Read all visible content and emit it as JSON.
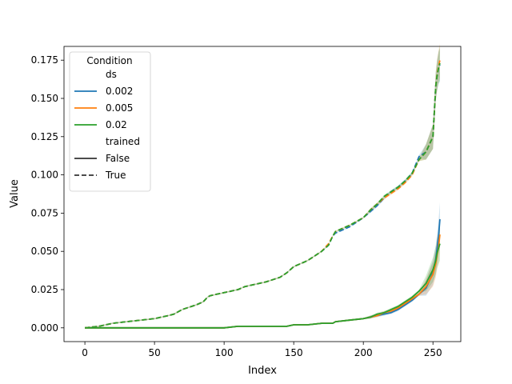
{
  "chart_data": {
    "type": "line",
    "title": "",
    "xlabel": "Index",
    "ylabel": "Value",
    "xlim": [
      -15,
      270
    ],
    "ylim": [
      -0.009,
      0.184
    ],
    "xticks": [
      0,
      50,
      100,
      150,
      200,
      250
    ],
    "xtick_labels": [
      "0",
      "50",
      "100",
      "150",
      "200",
      "250"
    ],
    "yticks": [
      0.0,
      0.025,
      0.05,
      0.075,
      0.1,
      0.125,
      0.15,
      0.175
    ],
    "ytick_labels": [
      "0.000",
      "0.025",
      "0.050",
      "0.075",
      "0.100",
      "0.125",
      "0.150",
      "0.175"
    ],
    "grid": false,
    "legend": {
      "title": "Condition",
      "placement": "top-left",
      "hue_title": "ds",
      "hue_entries": [
        {
          "label": "0.002",
          "color": "#1f77b4"
        },
        {
          "label": "0.005",
          "color": "#ff7f0e"
        },
        {
          "label": "0.02",
          "color": "#2ca02c"
        }
      ],
      "style_title": "trained",
      "style_entries": [
        {
          "label": "False",
          "dash": "solid"
        },
        {
          "label": "True",
          "dash": "dashed"
        }
      ]
    },
    "x": [
      0,
      10,
      20,
      30,
      40,
      50,
      60,
      64,
      70,
      80,
      85,
      88,
      90,
      100,
      110,
      115,
      120,
      130,
      140,
      145,
      150,
      160,
      170,
      175,
      178,
      180,
      190,
      200,
      205,
      210,
      215,
      220,
      225,
      230,
      235,
      240,
      245,
      250,
      252,
      253,
      254,
      255
    ],
    "series": [
      {
        "name": "0.002",
        "trained": "True",
        "color": "#1f77b4",
        "dash": "dashed",
        "values": [
          0.0,
          0.001,
          0.003,
          0.004,
          0.005,
          0.006,
          0.008,
          0.009,
          0.012,
          0.015,
          0.017,
          0.02,
          0.021,
          0.023,
          0.025,
          0.027,
          0.028,
          0.03,
          0.033,
          0.036,
          0.04,
          0.044,
          0.05,
          0.054,
          0.06,
          0.062,
          0.066,
          0.072,
          0.076,
          0.08,
          0.085,
          0.089,
          0.092,
          0.096,
          0.101,
          0.112,
          0.115,
          0.125,
          0.158,
          0.165,
          0.17,
          0.172
        ]
      },
      {
        "name": "0.005",
        "trained": "True",
        "color": "#ff7f0e",
        "dash": "dashed",
        "values": [
          0.0,
          0.001,
          0.003,
          0.004,
          0.005,
          0.006,
          0.008,
          0.009,
          0.012,
          0.015,
          0.017,
          0.02,
          0.021,
          0.023,
          0.025,
          0.027,
          0.028,
          0.03,
          0.033,
          0.036,
          0.04,
          0.044,
          0.05,
          0.055,
          0.06,
          0.063,
          0.067,
          0.072,
          0.077,
          0.081,
          0.085,
          0.088,
          0.091,
          0.095,
          0.1,
          0.11,
          0.115,
          0.125,
          0.158,
          0.166,
          0.171,
          0.175
        ]
      },
      {
        "name": "0.02",
        "trained": "True",
        "color": "#2ca02c",
        "dash": "dashed",
        "values": [
          0.0,
          0.001,
          0.003,
          0.004,
          0.005,
          0.006,
          0.008,
          0.009,
          0.012,
          0.015,
          0.017,
          0.02,
          0.021,
          0.023,
          0.025,
          0.027,
          0.028,
          0.03,
          0.033,
          0.036,
          0.04,
          0.044,
          0.05,
          0.054,
          0.06,
          0.063,
          0.067,
          0.072,
          0.077,
          0.081,
          0.086,
          0.089,
          0.092,
          0.096,
          0.101,
          0.11,
          0.115,
          0.125,
          0.158,
          0.165,
          0.17,
          0.173
        ]
      },
      {
        "name": "0.002",
        "trained": "False",
        "color": "#1f77b4",
        "dash": "solid",
        "values": [
          0.0,
          0.0,
          0.0,
          0.0,
          0.0,
          0.0,
          0.0,
          0.0,
          0.0,
          0.0,
          0.0,
          0.0,
          0.0,
          0.0,
          0.001,
          0.001,
          0.001,
          0.001,
          0.001,
          0.001,
          0.002,
          0.002,
          0.003,
          0.003,
          0.003,
          0.004,
          0.005,
          0.006,
          0.007,
          0.008,
          0.009,
          0.01,
          0.012,
          0.015,
          0.018,
          0.022,
          0.026,
          0.036,
          0.045,
          0.052,
          0.06,
          0.071
        ]
      },
      {
        "name": "0.005",
        "trained": "False",
        "color": "#ff7f0e",
        "dash": "solid",
        "values": [
          0.0,
          0.0,
          0.0,
          0.0,
          0.0,
          0.0,
          0.0,
          0.0,
          0.0,
          0.0,
          0.0,
          0.0,
          0.0,
          0.0,
          0.001,
          0.001,
          0.001,
          0.001,
          0.001,
          0.001,
          0.002,
          0.002,
          0.003,
          0.003,
          0.003,
          0.004,
          0.005,
          0.006,
          0.007,
          0.008,
          0.01,
          0.011,
          0.013,
          0.016,
          0.019,
          0.022,
          0.027,
          0.035,
          0.042,
          0.048,
          0.053,
          0.061
        ]
      },
      {
        "name": "0.02",
        "trained": "False",
        "color": "#2ca02c",
        "dash": "solid",
        "values": [
          0.0,
          0.0,
          0.0,
          0.0,
          0.0,
          0.0,
          0.0,
          0.0,
          0.0,
          0.0,
          0.0,
          0.0,
          0.0,
          0.0,
          0.001,
          0.001,
          0.001,
          0.001,
          0.001,
          0.001,
          0.002,
          0.002,
          0.003,
          0.003,
          0.003,
          0.004,
          0.005,
          0.006,
          0.007,
          0.009,
          0.01,
          0.012,
          0.014,
          0.017,
          0.02,
          0.024,
          0.029,
          0.038,
          0.044,
          0.049,
          0.052,
          0.055
        ]
      }
    ]
  }
}
